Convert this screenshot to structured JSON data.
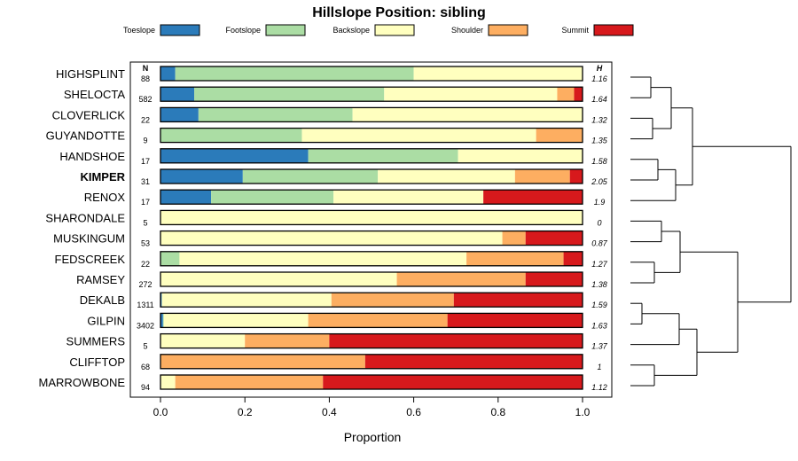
{
  "chart_data": {
    "type": "bar",
    "orientation": "horizontal",
    "stacked": true,
    "title": "Hillslope Position: sibling",
    "xlabel": "Proportion",
    "xlim": [
      0,
      1
    ],
    "x_ticks": [
      "0.0",
      "0.2",
      "0.4",
      "0.6",
      "0.8",
      "1.0"
    ],
    "n_header": "N",
    "h_header": "H",
    "legend_position": "top",
    "legend": [
      {
        "name": "Toeslope",
        "color": "#2b7bba"
      },
      {
        "name": "Footslope",
        "color": "#abdda4"
      },
      {
        "name": "Backslope",
        "color": "#ffffbf"
      },
      {
        "name": "Shoulder",
        "color": "#fdae61"
      },
      {
        "name": "Summit",
        "color": "#d7191c"
      }
    ],
    "highlight": "KIMPER",
    "rows": [
      {
        "name": "HIGHSPLINT",
        "n": "88",
        "h": "1.16",
        "values": [
          0.035,
          0.565,
          0.4,
          0,
          0
        ]
      },
      {
        "name": "SHELOCTA",
        "n": "582",
        "h": "1.64",
        "values": [
          0.08,
          0.45,
          0.41,
          0.04,
          0.02
        ]
      },
      {
        "name": "CLOVERLICK",
        "n": "22",
        "h": "1.32",
        "values": [
          0.09,
          0.365,
          0.545,
          0,
          0
        ]
      },
      {
        "name": "GUYANDOTTE",
        "n": "9",
        "h": "1.35",
        "values": [
          0,
          0.335,
          0.555,
          0.11,
          0
        ]
      },
      {
        "name": "HANDSHOE",
        "n": "17",
        "h": "1.58",
        "values": [
          0.35,
          0.355,
          0.295,
          0,
          0
        ]
      },
      {
        "name": "KIMPER",
        "n": "31",
        "h": "2.05",
        "values": [
          0.195,
          0.32,
          0.325,
          0.13,
          0.03
        ]
      },
      {
        "name": "RENOX",
        "n": "17",
        "h": "1.9",
        "values": [
          0.12,
          0.29,
          0.355,
          0,
          0.235
        ]
      },
      {
        "name": "SHARONDALE",
        "n": "5",
        "h": "0",
        "values": [
          0,
          0,
          1,
          0,
          0
        ]
      },
      {
        "name": "MUSKINGUM",
        "n": "53",
        "h": "0.87",
        "values": [
          0,
          0,
          0.81,
          0.055,
          0.135
        ]
      },
      {
        "name": "FEDSCREEK",
        "n": "22",
        "h": "1.27",
        "values": [
          0,
          0.045,
          0.68,
          0.23,
          0.045
        ]
      },
      {
        "name": "RAMSEY",
        "n": "272",
        "h": "1.38",
        "values": [
          0,
          0,
          0.56,
          0.305,
          0.135
        ]
      },
      {
        "name": "DEKALB",
        "n": "1311",
        "h": "1.59",
        "values": [
          0.003,
          0,
          0.402,
          0.29,
          0.305
        ]
      },
      {
        "name": "GILPIN",
        "n": "3402",
        "h": "1.63",
        "values": [
          0.006,
          0.002,
          0.342,
          0.33,
          0.32
        ]
      },
      {
        "name": "SUMMERS",
        "n": "5",
        "h": "1.37",
        "values": [
          0,
          0,
          0.2,
          0.2,
          0.6
        ]
      },
      {
        "name": "CLIFFTOP",
        "n": "68",
        "h": "1",
        "values": [
          0,
          0,
          0,
          0.485,
          0.515
        ]
      },
      {
        "name": "MARROWBONE",
        "n": "94",
        "h": "1.12",
        "values": [
          0,
          0,
          0.035,
          0.35,
          0.615
        ]
      }
    ]
  }
}
